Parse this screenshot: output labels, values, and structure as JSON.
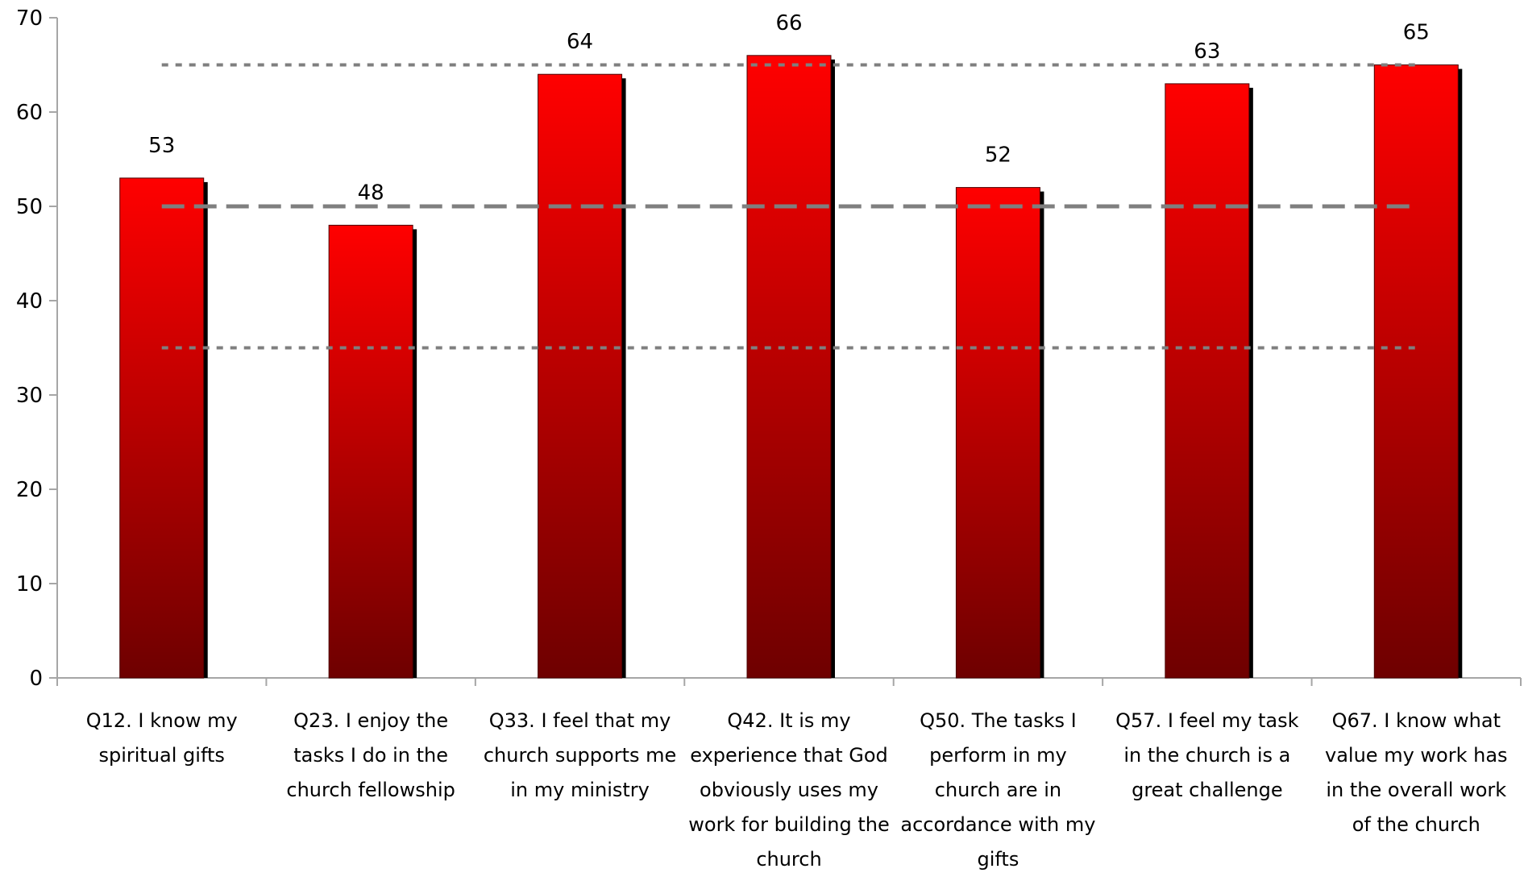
{
  "chart_data": {
    "type": "bar",
    "title": "",
    "xlabel": "",
    "ylabel": "",
    "ylim": [
      0,
      70
    ],
    "yticks": [
      0,
      10,
      20,
      30,
      40,
      50,
      60,
      70
    ],
    "categories": [
      "Q12. I know my spiritual gifts",
      "Q23. I enjoy the tasks I do in the church fellowship",
      "Q33. I feel that my church supports me in my ministry",
      "Q42. It is my experience that God obviously uses my work for building the church",
      "Q50. The tasks I perform in my church are in accordance with my gifts",
      "Q57. I feel my task in the church is a great challenge",
      "Q67. I know what value my work has in the overall work of the church"
    ],
    "values": [
      53,
      48,
      64,
      66,
      52,
      63,
      65
    ],
    "data_labels": [
      "53",
      "48",
      "64",
      "66",
      "52",
      "63",
      "65"
    ],
    "reference_lines": [
      {
        "value": 65,
        "style": "dotted"
      },
      {
        "value": 50,
        "style": "dashed"
      },
      {
        "value": 35,
        "style": "dotted"
      }
    ],
    "grid": false,
    "legend": "none",
    "colors": {
      "bar_top": "#ff0000",
      "bar_bottom": "#6e0000",
      "bar_shadow": "#000000",
      "reference_line": "#7f7f7f",
      "axis": "#a6a6a6"
    }
  }
}
